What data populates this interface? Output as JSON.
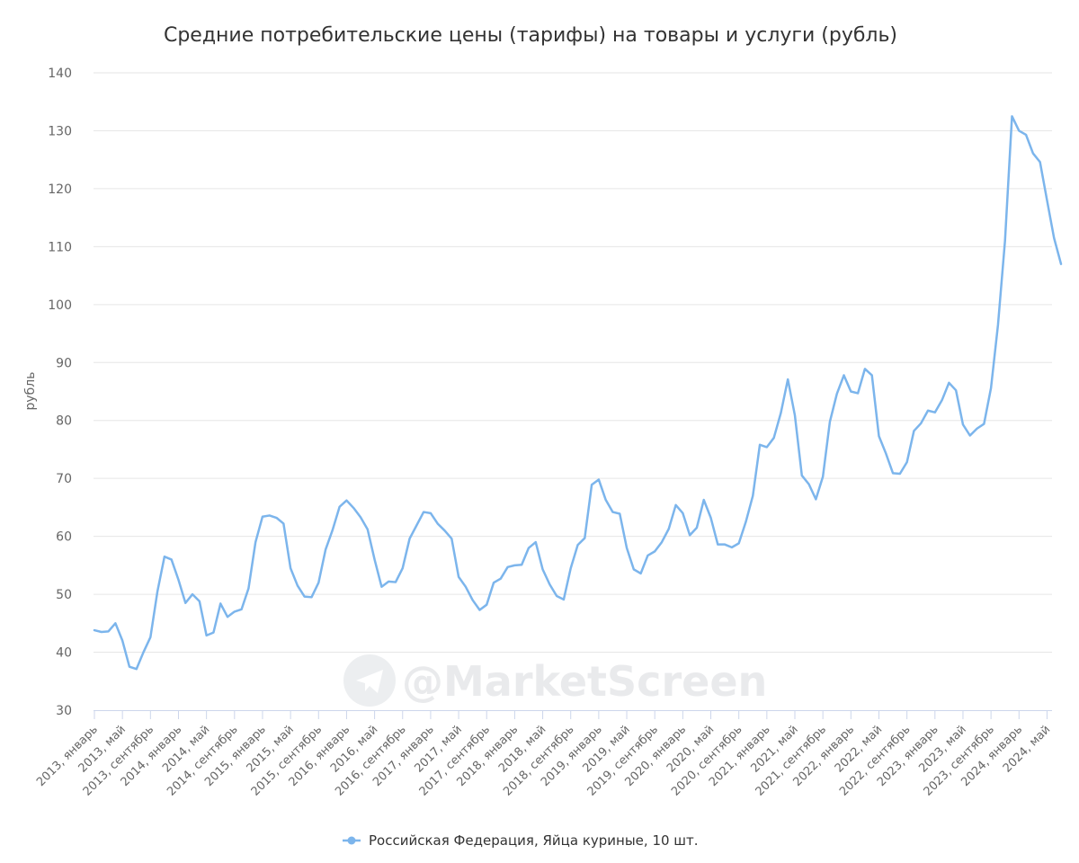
{
  "watermark": "@MarketScreen",
  "colors": {
    "series": "#7cb5ec",
    "grid": "#e6e6e6",
    "axis": "#ccd6eb",
    "text": "#333333",
    "tick_text": "#666666",
    "watermark": "#e9eaec"
  },
  "chart_data": {
    "type": "line",
    "title": "Средние потребительские цены (тарифы) на товары и услуги (рубль)",
    "ylabel": "рубль",
    "xlabel": "",
    "ylim": [
      30,
      140
    ],
    "yticks": [
      30,
      40,
      50,
      60,
      70,
      80,
      90,
      100,
      110,
      120,
      130,
      140
    ],
    "grid": true,
    "legend_position": "bottom-center",
    "x_tick_every_months": 4,
    "x_tick_labels": [
      "2013, январь",
      "2013, май",
      "2013, сентябрь",
      "2014, январь",
      "2014, май",
      "2014, сентябрь",
      "2015, январь",
      "2015, май",
      "2015, сентябрь",
      "2016, январь",
      "2016, май",
      "2016, сентябрь",
      "2017, январь",
      "2017, май",
      "2017, сентябрь",
      "2018, январь",
      "2018, май",
      "2018, сентябрь",
      "2019, январь",
      "2019, май",
      "2019, сентябрь",
      "2020, январь",
      "2020, май",
      "2020, сентябрь",
      "2021, январь",
      "2021, май",
      "2021, сентябрь",
      "2022, январь",
      "2022, май",
      "2022, сентябрь",
      "2023, январь",
      "2023, май",
      "2023, сентябрь",
      "2024, январь",
      "2024, май"
    ],
    "start": "2013-01",
    "series": [
      {
        "name": "Российская Федерация, Яйца куриные, 10 шт.",
        "values": [
          43.8,
          43.5,
          43.6,
          45.0,
          42.0,
          37.5,
          37.1,
          40.0,
          42.6,
          50.5,
          56.5,
          56.0,
          52.5,
          48.5,
          50.0,
          48.8,
          42.9,
          43.4,
          48.4,
          46.1,
          47.0,
          47.4,
          51.0,
          59.0,
          63.4,
          63.6,
          63.2,
          62.2,
          54.5,
          51.5,
          49.6,
          49.5,
          52.0,
          57.7,
          61.1,
          65.1,
          66.2,
          64.9,
          63.3,
          61.2,
          56.0,
          51.3,
          52.2,
          52.1,
          54.5,
          59.6,
          61.9,
          64.2,
          64.0,
          62.2,
          61.0,
          59.6,
          53.0,
          51.3,
          49.0,
          47.3,
          48.2,
          52.0,
          52.7,
          54.7,
          55.0,
          55.1,
          58.0,
          59.0,
          54.3,
          51.7,
          49.7,
          49.1,
          54.5,
          58.5,
          59.7,
          68.9,
          69.8,
          66.3,
          64.2,
          63.9,
          58.0,
          54.3,
          53.6,
          56.7,
          57.4,
          59.0,
          61.3,
          65.4,
          64.0,
          60.2,
          61.5,
          66.3,
          63.2,
          58.6,
          58.6,
          58.1,
          58.8,
          62.5,
          67.0,
          75.8,
          75.4,
          77.0,
          81.3,
          87.1,
          80.9,
          70.5,
          69.0,
          66.4,
          70.3,
          79.8,
          84.6,
          87.8,
          85.0,
          84.7,
          88.9,
          87.8,
          77.3,
          74.3,
          70.9,
          70.8,
          72.8,
          78.2,
          79.5,
          81.7,
          81.4,
          83.5,
          86.5,
          85.2,
          79.3,
          77.4,
          78.6,
          79.4,
          85.6,
          96.5,
          111.0,
          132.5,
          130.0,
          129.3,
          126.1,
          124.6,
          118.0,
          111.5,
          107.0
        ]
      }
    ]
  }
}
